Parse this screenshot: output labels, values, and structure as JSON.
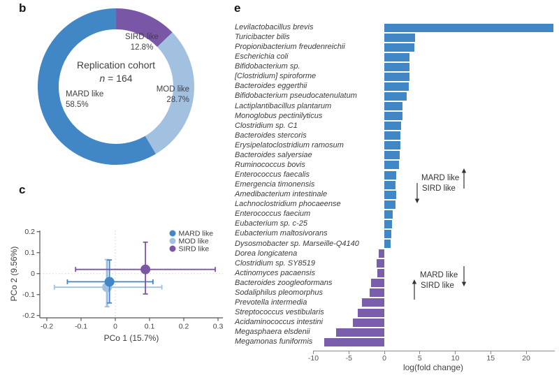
{
  "figure": {
    "panel_b_label": "b",
    "panel_c_label": "c",
    "panel_e_label": "e"
  },
  "colors": {
    "mard_blue": "#4187C6",
    "mod_light_blue": "#A2C1E1",
    "sird_purple": "#7957A6",
    "bar_positive": "#4187C6",
    "bar_negative": "#7A5EAB",
    "axis_gray": "#8A8A8A",
    "text_dark": "#3B3B3B"
  },
  "chart_data": [
    {
      "id": "replication_donut",
      "type": "pie",
      "subtype": "donut",
      "title": "Replication cohort",
      "n_italic": "n",
      "n_rest": " = 164",
      "start": "top",
      "direction": "clockwise",
      "segments": [
        {
          "label": "SIRD like",
          "pct": "12.8%",
          "value": 12.8,
          "color": "#7957A6"
        },
        {
          "label": "MOD like",
          "pct": "28.7%",
          "value": 28.7,
          "color": "#A2C1E1"
        },
        {
          "label": "MARD like",
          "pct": "58.5%",
          "value": 58.5,
          "color": "#4187C6"
        }
      ]
    },
    {
      "id": "pcoa_scatter",
      "type": "scatter",
      "xlabel": "PCo 1 (15.7%)",
      "ylabel": "PCo 2 (9.56%)",
      "xlim": [
        -0.22,
        0.31
      ],
      "ylim": [
        -0.21,
        0.21
      ],
      "xticks": [
        -0.2,
        -0.1,
        0,
        0.1,
        0.2,
        0.3
      ],
      "yticks": [
        0.2,
        0.1,
        0,
        -0.1,
        -0.2
      ],
      "grid": "dotted zero reference lines",
      "legend_position": "top-right",
      "series": [
        {
          "name": "MARD like",
          "color": "#4187C6",
          "x": -0.017,
          "y": -0.039,
          "x_lo": -0.14,
          "x_hi": 0.11,
          "y_lo": -0.14,
          "y_hi": 0.065
        },
        {
          "name": "MOD like",
          "color": "#A2C1E1",
          "x": -0.024,
          "y": -0.065,
          "x_lo": -0.178,
          "x_hi": 0.136,
          "y_lo": -0.158,
          "y_hi": 0.067
        },
        {
          "name": "SIRD like",
          "color": "#7C55A5",
          "x": 0.088,
          "y": 0.02,
          "x_lo": -0.116,
          "x_hi": 0.292,
          "y_lo": -0.097,
          "y_hi": 0.15
        }
      ]
    },
    {
      "id": "fold_change_bars",
      "type": "bar",
      "orientation": "horizontal",
      "xlabel": "log(fold change)",
      "xticks": [
        -10,
        -5,
        0,
        5,
        10,
        15,
        20
      ],
      "xlim": [
        -10,
        24
      ],
      "positive_color": "#4187C6",
      "negative_color": "#7A5EAB",
      "categories": [
        "Levilactobacillus brevis",
        "Turicibacter bilis",
        "Propionibacterium freudenreichii",
        "Escherichia coli",
        "Bifidobacterium sp.",
        "[Clostridium] spiroforme",
        "Bacteroides eggerthii",
        "Bifidobacterium pseudocatenulatum",
        "Lactiplantibacillus plantarum",
        "Monoglobus pectinilyticus",
        "Clostridium sp. C1",
        "Bacteroides stercoris",
        "Erysipelatoclostridium ramosum",
        "Bacteroides salyersiae",
        "Ruminococcus bovis",
        "Enterococcus faecalis",
        "Emergencia timonensis",
        "Amedibacterium intestinale",
        "Lachnoclostridium phocaeense",
        "Enterococcus faecium",
        "Eubacterium sp. c-25",
        "Eubacterium maltosivorans",
        "Dysosmobacter sp. Marseille-Q4140",
        "Dorea longicatena",
        "Clostridium sp. SY8519",
        "Actinomyces pacaensis",
        "Bacteroides zoogleoformans",
        "Sodaliphilus pleomorphus",
        "Prevotella intermedia",
        "Streptococcus vestibularis",
        "Acidaminococcus intestini",
        "Megasphaera elsdenii",
        "Megamonas funiformis"
      ],
      "values": [
        23.8,
        4.3,
        4.2,
        3.5,
        3.5,
        3.5,
        3.4,
        3.2,
        2.6,
        2.6,
        2.4,
        2.3,
        2.3,
        2.2,
        2.1,
        1.7,
        1.6,
        1.7,
        1.6,
        1.2,
        1.1,
        1.0,
        0.9,
        -0.8,
        -1.1,
        -1.0,
        -1.9,
        -2.1,
        -3.2,
        -3.7,
        -4.4,
        -6.8,
        -8.5
      ],
      "annotations": [
        {
          "position": "upper",
          "line1": "MARD like",
          "arrow1": "up",
          "line2": "SIRD like",
          "arrow2": "down"
        },
        {
          "position": "lower",
          "line1": "MARD like",
          "arrow1": "down",
          "line2": "SIRD like",
          "arrow2": "up"
        }
      ]
    }
  ]
}
